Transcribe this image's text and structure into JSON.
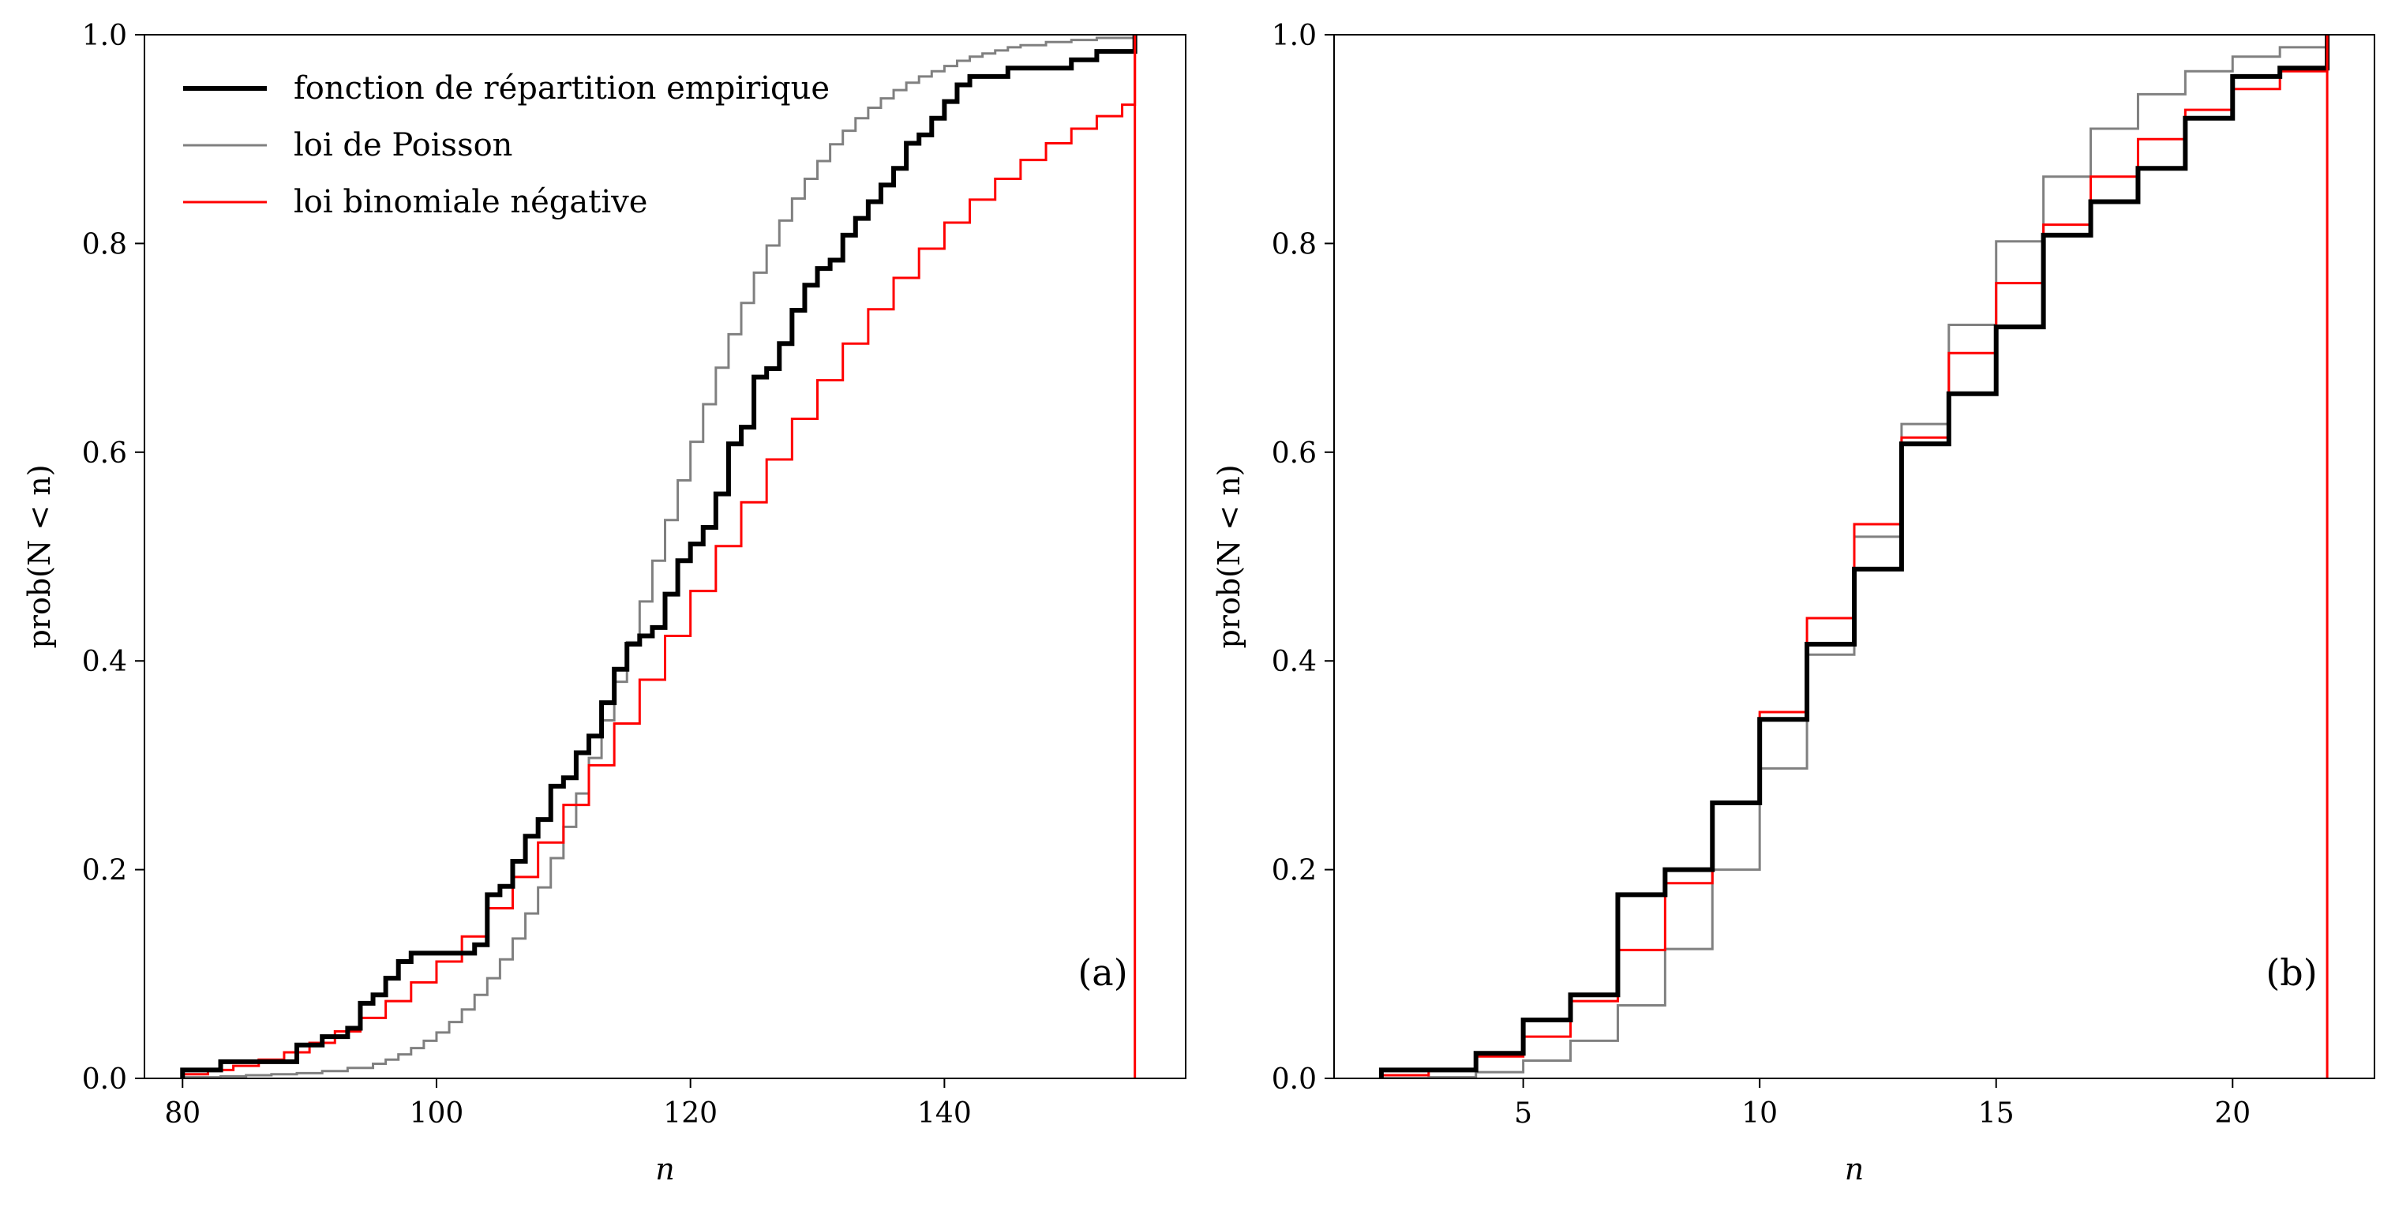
{
  "chart_data": [
    {
      "type": "line",
      "step": true,
      "panel_label": "(a)",
      "xlabel": "n",
      "ylabel": "prob(N < n)",
      "xlim": [
        77,
        159
      ],
      "ylim": [
        0.0,
        1.0
      ],
      "xticks": [
        80,
        100,
        120,
        140
      ],
      "xtick_labels": [
        "80",
        "100",
        "120",
        "140"
      ],
      "yticks": [
        0.0,
        0.2,
        0.4,
        0.6,
        0.8,
        1.0
      ],
      "ytick_labels": [
        "0.0",
        "0.2",
        "0.4",
        "0.6",
        "0.8",
        "1.0"
      ],
      "grid": false,
      "legend": {
        "position": "upper-left",
        "entries": [
          {
            "label": "fonction de répartition empirique",
            "color": "#000000"
          },
          {
            "label": "loi de Poisson",
            "color": "#808080"
          },
          {
            "label": "loi binomiale négative",
            "color": "#ff0000"
          }
        ]
      },
      "vertical_line": {
        "x": 155,
        "color": "#ff0000"
      },
      "series": [
        {
          "name": "fonction de répartition empirique",
          "color": "#000000",
          "x": [
            80,
            83,
            89,
            91,
            93,
            94,
            95,
            96,
            97,
            98,
            100,
            103,
            104,
            105,
            106,
            107,
            108,
            109,
            110,
            111,
            112,
            113,
            114,
            115,
            116,
            117,
            118,
            119,
            120,
            121,
            122,
            123,
            124,
            125,
            126,
            127,
            128,
            129,
            130,
            131,
            132,
            133,
            134,
            135,
            136,
            137,
            138,
            139,
            140,
            141,
            142,
            143,
            145,
            146,
            150,
            152,
            155
          ],
          "y": [
            0.008,
            0.016,
            0.032,
            0.04,
            0.048,
            0.072,
            0.08,
            0.096,
            0.112,
            0.12,
            0.12,
            0.128,
            0.176,
            0.184,
            0.208,
            0.232,
            0.248,
            0.28,
            0.288,
            0.312,
            0.328,
            0.36,
            0.392,
            0.416,
            0.424,
            0.432,
            0.464,
            0.496,
            0.512,
            0.528,
            0.56,
            0.608,
            0.624,
            0.672,
            0.68,
            0.704,
            0.736,
            0.76,
            0.776,
            0.784,
            0.808,
            0.824,
            0.84,
            0.856,
            0.872,
            0.896,
            0.904,
            0.92,
            0.936,
            0.952,
            0.96,
            0.96,
            0.968,
            0.968,
            0.976,
            0.984,
            1.0
          ]
        },
        {
          "name": "loi de Poisson",
          "color": "#808080",
          "x": [
            80,
            83,
            85,
            87,
            89,
            91,
            93,
            95,
            96,
            97,
            98,
            99,
            100,
            101,
            102,
            103,
            104,
            105,
            106,
            107,
            108,
            109,
            110,
            111,
            112,
            113,
            114,
            115,
            116,
            117,
            118,
            119,
            120,
            121,
            122,
            123,
            124,
            125,
            126,
            127,
            128,
            129,
            130,
            131,
            132,
            133,
            134,
            135,
            136,
            137,
            138,
            139,
            140,
            141,
            142,
            143,
            144,
            145,
            146,
            148,
            150,
            152,
            155
          ],
          "y": [
            0.001,
            0.002,
            0.003,
            0.004,
            0.005,
            0.007,
            0.01,
            0.014,
            0.018,
            0.023,
            0.029,
            0.036,
            0.044,
            0.054,
            0.066,
            0.08,
            0.096,
            0.114,
            0.134,
            0.158,
            0.183,
            0.211,
            0.241,
            0.273,
            0.307,
            0.343,
            0.38,
            0.418,
            0.457,
            0.496,
            0.535,
            0.573,
            0.61,
            0.646,
            0.681,
            0.713,
            0.743,
            0.772,
            0.798,
            0.822,
            0.843,
            0.862,
            0.879,
            0.895,
            0.908,
            0.92,
            0.93,
            0.939,
            0.947,
            0.954,
            0.96,
            0.965,
            0.97,
            0.975,
            0.979,
            0.982,
            0.985,
            0.988,
            0.99,
            0.993,
            0.995,
            0.997,
            0.999
          ]
        },
        {
          "name": "loi binomiale négative",
          "color": "#ff0000",
          "x": [
            80,
            82,
            84,
            86,
            88,
            90,
            92,
            94,
            96,
            98,
            100,
            102,
            104,
            106,
            108,
            110,
            112,
            114,
            116,
            118,
            120,
            122,
            124,
            126,
            128,
            130,
            132,
            134,
            136,
            138,
            140,
            142,
            144,
            146,
            148,
            150,
            152,
            154,
            155
          ],
          "y": [
            0.004,
            0.008,
            0.012,
            0.018,
            0.025,
            0.034,
            0.045,
            0.058,
            0.074,
            0.092,
            0.112,
            0.136,
            0.163,
            0.193,
            0.226,
            0.262,
            0.3,
            0.34,
            0.382,
            0.424,
            0.467,
            0.51,
            0.552,
            0.593,
            0.632,
            0.669,
            0.704,
            0.737,
            0.767,
            0.795,
            0.82,
            0.842,
            0.862,
            0.88,
            0.896,
            0.91,
            0.922,
            0.933,
            0.989
          ]
        }
      ]
    },
    {
      "type": "line",
      "step": true,
      "panel_label": "(b)",
      "xlabel": "n",
      "ylabel": "prob(N < n)",
      "xlim": [
        1,
        23
      ],
      "ylim": [
        0.0,
        1.0
      ],
      "xticks": [
        5,
        10,
        15,
        20
      ],
      "xtick_labels": [
        "5",
        "10",
        "15",
        "20"
      ],
      "yticks": [
        0.0,
        0.2,
        0.4,
        0.6,
        0.8,
        1.0
      ],
      "ytick_labels": [
        "0.0",
        "0.2",
        "0.4",
        "0.6",
        "0.8",
        "1.0"
      ],
      "grid": false,
      "vertical_line": {
        "x": 22,
        "color": "#ff0000"
      },
      "series": [
        {
          "name": "fonction de répartition empirique",
          "color": "#000000",
          "x": [
            2,
            3,
            4,
            5,
            6,
            7,
            8,
            9,
            10,
            11,
            12,
            13,
            14,
            15,
            16,
            17,
            18,
            19,
            20,
            21,
            22
          ],
          "y": [
            0.008,
            0.008,
            0.024,
            0.056,
            0.08,
            0.176,
            0.2,
            0.264,
            0.344,
            0.416,
            0.488,
            0.608,
            0.656,
            0.72,
            0.808,
            0.84,
            0.872,
            0.92,
            0.96,
            0.968,
            1.0
          ]
        },
        {
          "name": "loi de Poisson",
          "color": "#808080",
          "x": [
            2,
            3,
            4,
            5,
            6,
            7,
            8,
            9,
            10,
            11,
            12,
            13,
            14,
            15,
            16,
            17,
            18,
            19,
            20,
            21,
            22
          ],
          "y": [
            0.0003,
            0.001,
            0.006,
            0.017,
            0.036,
            0.07,
            0.124,
            0.2,
            0.297,
            0.406,
            0.519,
            0.627,
            0.722,
            0.802,
            0.864,
            0.91,
            0.943,
            0.965,
            0.979,
            0.988,
            0.994
          ]
        },
        {
          "name": "loi binomiale négative",
          "color": "#ff0000",
          "x": [
            2,
            3,
            4,
            5,
            6,
            7,
            8,
            9,
            10,
            11,
            12,
            13,
            14,
            15,
            16,
            17,
            18,
            19,
            20,
            21,
            22
          ],
          "y": [
            0.003,
            0.009,
            0.021,
            0.04,
            0.074,
            0.123,
            0.187,
            0.265,
            0.351,
            0.441,
            0.531,
            0.614,
            0.695,
            0.762,
            0.818,
            0.864,
            0.9,
            0.928,
            0.948,
            0.965,
            0.977
          ]
        }
      ]
    }
  ]
}
